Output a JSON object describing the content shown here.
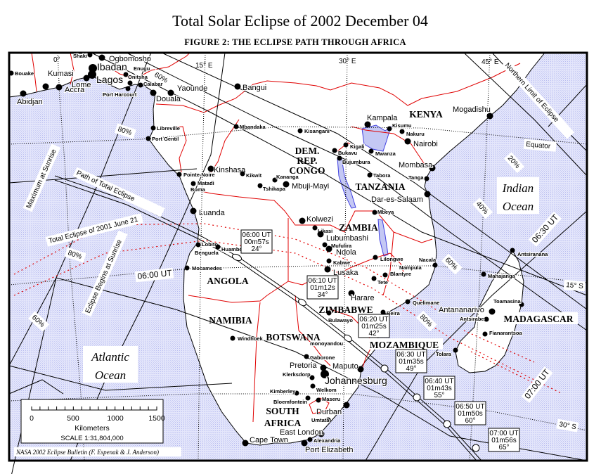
{
  "title": "Total Solar Eclipse of 2002 December 04",
  "subtitle": "FIGURE 2:  THE ECLIPSE PATH THROUGH AFRICA",
  "colors": {
    "ocean": "#d6d8f8",
    "land": "#ffffff",
    "borders": "#e00000",
    "lakes": "#c4c8f4",
    "lines": "#000000"
  },
  "meridians": [
    "0°",
    "15° E",
    "30° E",
    "45° E"
  ],
  "parallels": [
    "Equator",
    "15° S",
    "30° S"
  ],
  "line_labels": {
    "northern_limit": "Northern Limit of Eclipse",
    "maximum_sunrise": "Maximum at Sunrise",
    "begins_sunrise": "Eclipse Begins at Sunrise",
    "path": "Path  of  Total  Eclipse",
    "eclipse_2001": "Total Eclipse of 2001 June 21",
    "ut_0600": "06:00 UT",
    "ut_0630": "06:30 UT",
    "ut_0700": "07:00 UT",
    "pct_20": "20%",
    "pct_40": "40%",
    "pct_60_east": "60%",
    "pct_80_east": "80%",
    "pct_60_north": "60%",
    "pct_80_north": "80%",
    "pct_80_west": "80%",
    "pct_60_southwest": "60%"
  },
  "oceans": [
    {
      "line1": "Indian",
      "line2": "Ocean"
    },
    {
      "line1": "Atlantic",
      "line2": "Ocean"
    }
  ],
  "countries": {
    "kenya": "KENYA",
    "drc1": "DEM.",
    "drc2": "REP.",
    "drc3": "CONGO",
    "tanzania": "TANZANIA",
    "zambia": "ZAMBIA",
    "angola": "ANGOLA",
    "namibia": "NAMIBIA",
    "botswana": "BOTSWANA",
    "zimbabwe": "ZIMBABWE",
    "mozambique": "MOZAMBIQUE",
    "madagascar": "MADAGASCAR",
    "sa1": "SOUTH",
    "sa2": "AFRICA"
  },
  "cities": [
    "Bouake",
    "Kumasi",
    "Accra",
    "Abidjan",
    "Lome",
    "Lagos",
    "Ibadan",
    "Ogbomosho",
    "Shaki",
    "Enugu",
    "Onitsha",
    "Calabar",
    "Port Harcourt",
    "Douala",
    "Yaounde",
    "Bangui",
    "Libreville",
    "Port Gentil",
    "Mbandaka",
    "Kisangani",
    "Kinshasa",
    "Pointe-Noire",
    "Matadi",
    "Boma",
    "Kikwit",
    "Kananga",
    "Tshikapa",
    "Mbuji-Mayi",
    "Luanda",
    "Lobito",
    "Benguela",
    "Huambo",
    "Mocamedes",
    "Windhoek",
    "Kolwezi",
    "Likasi",
    "Lubumbashi",
    "Mufulira",
    "Ndola",
    "Kabwe",
    "Lusaka",
    "Harare",
    "Bulawayo",
    "Lilongwe",
    "Blantyre",
    "Tete",
    "Nampula",
    "Nacala",
    "Quelimane",
    "Beira",
    "Mbeya",
    "Dar-es-Salaam",
    "Tabora",
    "Mwanza",
    "Kigali",
    "Bukavu",
    "Bujumbura",
    "Kampala",
    "Kisumu",
    "Nakuru",
    "Nairobi",
    "Mombasa",
    "Tanga",
    "Mogadishu",
    "Antsiranana",
    "Mahajanga",
    "Toamasina",
    "Antananarivo",
    "Antsirabe",
    "Fianarantsoa",
    "Tolara",
    "Gaborone",
    "monoyandou",
    "Pretoria",
    "Johannesburg",
    "Maputo",
    "Klerksdorp",
    "Welkom",
    "Kimberley",
    "Bloemfontein",
    "Maseru",
    "Durban",
    "Umtata",
    "East London",
    "Alexandria",
    "Port Elizabeth",
    "Cape Town"
  ],
  "time_boxes": [
    {
      "time": "06:00 UT",
      "duration": "00m57s",
      "altitude": "24°"
    },
    {
      "time": "06:10 UT",
      "duration": "01m12s",
      "altitude": "34°"
    },
    {
      "time": "06:20 UT",
      "duration": "01m25s",
      "altitude": "42°"
    },
    {
      "time": "06:30 UT",
      "duration": "01m35s",
      "altitude": "49°"
    },
    {
      "time": "06:40 UT",
      "duration": "01m43s",
      "altitude": "55°"
    },
    {
      "time": "06:50 UT",
      "duration": "01m50s",
      "altitude": "60°"
    },
    {
      "time": "07:00 UT",
      "duration": "01m56s",
      "altitude": "65°"
    }
  ],
  "scale": {
    "ticks": [
      "0",
      "500",
      "1000",
      "1500"
    ],
    "unit": "Kilometers",
    "scale_text": "SCALE  1:31,804,000"
  },
  "credit": "NASA 2002 Eclipse Bulletin (F. Espenak & J. Anderson)"
}
